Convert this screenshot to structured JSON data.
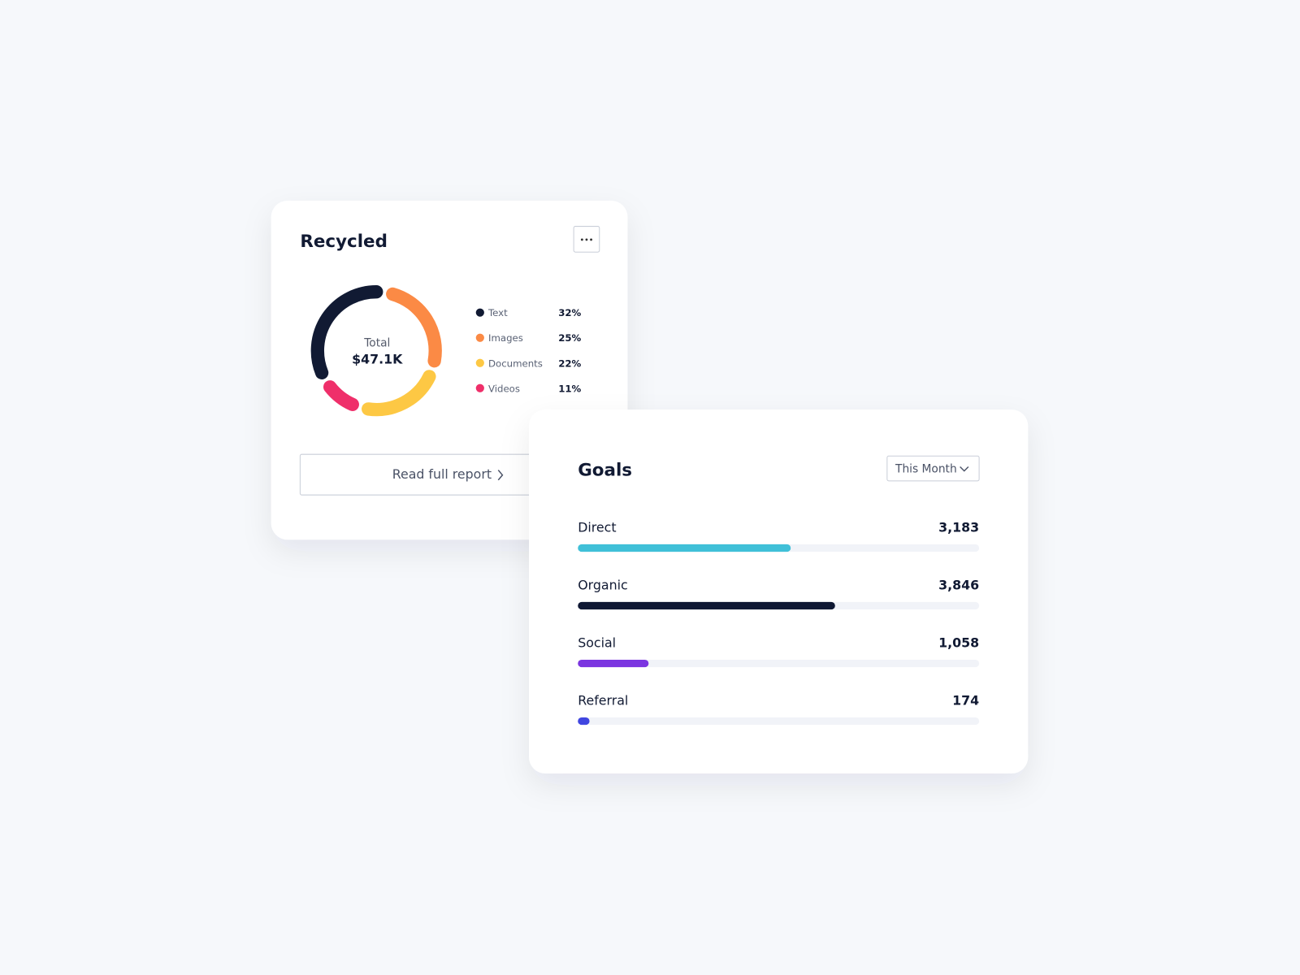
{
  "chart_data": [
    {
      "type": "donut",
      "title": "Recycled",
      "center_label": "Total",
      "center_value": "$47.1K",
      "categories": [
        "Text",
        "Images",
        "Documents",
        "Videos"
      ],
      "values": [
        32,
        25,
        22,
        11
      ],
      "value_labels": [
        "32%",
        "25%",
        "22%",
        "11%"
      ],
      "colors": [
        "#111a33",
        "#fb8a45",
        "#fdc844",
        "#ef2f6a"
      ],
      "button": "Read full report"
    },
    {
      "type": "bar",
      "orientation": "horizontal",
      "title": "Goals",
      "dropdown": "This Month",
      "categories": [
        "Direct",
        "Organic",
        "Social",
        "Referral"
      ],
      "values": [
        3183,
        3846,
        1058,
        174
      ],
      "value_labels": [
        "3,183",
        "3,846",
        "1,058",
        "174"
      ],
      "colors": [
        "#40c0d8",
        "#0f1833",
        "#7b35e0",
        "#4046e0"
      ],
      "xlim": [
        0,
        6000
      ]
    }
  ]
}
